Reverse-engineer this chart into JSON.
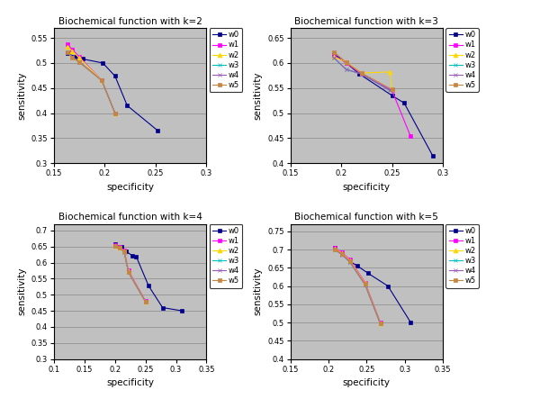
{
  "panels": [
    {
      "title": "Biochemical function with k=2",
      "xlim": [
        0.15,
        0.3
      ],
      "ylim": [
        0.3,
        0.57
      ],
      "xticks": [
        0.15,
        0.2,
        0.25,
        0.3
      ],
      "yticks": [
        0.3,
        0.35,
        0.4,
        0.45,
        0.5,
        0.55
      ],
      "series": [
        {
          "label": "w0",
          "color": "#00008B",
          "marker": "s",
          "mfc": "#00008B",
          "x": [
            0.163,
            0.17,
            0.178,
            0.198,
            0.21,
            0.222,
            0.252
          ],
          "y": [
            0.52,
            0.513,
            0.508,
            0.5,
            0.474,
            0.415,
            0.365
          ]
        },
        {
          "label": "w1",
          "color": "#FF00FF",
          "marker": "s",
          "mfc": "#FF00FF",
          "x": [
            0.163,
            0.168,
            0.175,
            0.197,
            0.21
          ],
          "y": [
            0.537,
            0.527,
            0.512,
            0.465,
            0.4
          ]
        },
        {
          "label": "w2",
          "color": "#FFD700",
          "marker": "^",
          "mfc": "#FFD700",
          "x": [
            0.163,
            0.168,
            0.175,
            0.197,
            0.21
          ],
          "y": [
            0.533,
            0.524,
            0.51,
            0.465,
            0.4
          ]
        },
        {
          "label": "w3",
          "color": "#00BFBF",
          "marker": "x",
          "mfc": "#00BFBF",
          "x": [
            0.163,
            0.168,
            0.175,
            0.197,
            0.21
          ],
          "y": [
            0.522,
            0.512,
            0.502,
            0.465,
            0.4
          ]
        },
        {
          "label": "w4",
          "color": "#9B59B6",
          "marker": "x",
          "mfc": "#9B59B6",
          "x": [
            0.163,
            0.168,
            0.175,
            0.197,
            0.21
          ],
          "y": [
            0.522,
            0.512,
            0.502,
            0.465,
            0.4
          ]
        },
        {
          "label": "w5",
          "color": "#C68642",
          "marker": "s",
          "mfc": "#C68642",
          "x": [
            0.163,
            0.168,
            0.175,
            0.197,
            0.21
          ],
          "y": [
            0.521,
            0.511,
            0.501,
            0.465,
            0.4
          ]
        }
      ]
    },
    {
      "title": "Biochemical function with k=3",
      "xlim": [
        0.15,
        0.3
      ],
      "ylim": [
        0.4,
        0.67
      ],
      "xticks": [
        0.15,
        0.2,
        0.25,
        0.3
      ],
      "yticks": [
        0.4,
        0.45,
        0.5,
        0.55,
        0.6,
        0.65
      ],
      "series": [
        {
          "label": "w0",
          "color": "#00008B",
          "marker": "s",
          "mfc": "#00008B",
          "x": [
            0.193,
            0.205,
            0.218,
            0.25,
            0.262,
            0.29
          ],
          "y": [
            0.618,
            0.6,
            0.578,
            0.535,
            0.52,
            0.415
          ]
        },
        {
          "label": "w1",
          "color": "#FF00FF",
          "marker": "s",
          "mfc": "#FF00FF",
          "x": [
            0.193,
            0.205,
            0.22,
            0.25,
            0.268
          ],
          "y": [
            0.615,
            0.6,
            0.578,
            0.545,
            0.455
          ]
        },
        {
          "label": "w2",
          "color": "#FFD700",
          "marker": "^",
          "mfc": "#FFD700",
          "x": [
            0.193,
            0.205,
            0.22,
            0.248,
            0.25
          ],
          "y": [
            0.612,
            0.602,
            0.58,
            0.582,
            0.548
          ]
        },
        {
          "label": "w3",
          "color": "#00BFBF",
          "marker": "x",
          "mfc": "#00BFBF",
          "x": [
            0.193,
            0.205,
            0.22,
            0.248
          ],
          "y": [
            0.61,
            0.587,
            0.578,
            0.545
          ]
        },
        {
          "label": "w4",
          "color": "#9B59B6",
          "marker": "x",
          "mfc": "#9B59B6",
          "x": [
            0.193,
            0.205,
            0.22,
            0.248
          ],
          "y": [
            0.61,
            0.587,
            0.578,
            0.545
          ]
        },
        {
          "label": "w5",
          "color": "#C68642",
          "marker": "s",
          "mfc": "#C68642",
          "x": [
            0.193,
            0.205,
            0.22,
            0.25
          ],
          "y": [
            0.622,
            0.601,
            0.58,
            0.547
          ]
        }
      ]
    },
    {
      "title": "Biochemical function with k=4",
      "xlim": [
        0.1,
        0.35
      ],
      "ylim": [
        0.3,
        0.72
      ],
      "xticks": [
        0.1,
        0.15,
        0.2,
        0.25,
        0.3,
        0.35
      ],
      "yticks": [
        0.3,
        0.35,
        0.4,
        0.45,
        0.5,
        0.55,
        0.6,
        0.65,
        0.7
      ],
      "series": [
        {
          "label": "w0",
          "color": "#00008B",
          "marker": "s",
          "mfc": "#00008B",
          "x": [
            0.2,
            0.21,
            0.218,
            0.228,
            0.235,
            0.255,
            0.278,
            0.31
          ],
          "y": [
            0.658,
            0.648,
            0.635,
            0.622,
            0.618,
            0.528,
            0.46,
            0.45
          ]
        },
        {
          "label": "w1",
          "color": "#FF00FF",
          "marker": "s",
          "mfc": "#FF00FF",
          "x": [
            0.2,
            0.208,
            0.215,
            0.222,
            0.25
          ],
          "y": [
            0.655,
            0.648,
            0.638,
            0.575,
            0.48
          ]
        },
        {
          "label": "w2",
          "color": "#FFD700",
          "marker": "^",
          "mfc": "#FFD700",
          "x": [
            0.2,
            0.208,
            0.215,
            0.222,
            0.25
          ],
          "y": [
            0.653,
            0.647,
            0.636,
            0.573,
            0.478
          ]
        },
        {
          "label": "w3",
          "color": "#00BFBF",
          "marker": "x",
          "mfc": "#00BFBF",
          "x": [
            0.2,
            0.208,
            0.215,
            0.222,
            0.25
          ],
          "y": [
            0.651,
            0.645,
            0.633,
            0.57,
            0.478
          ]
        },
        {
          "label": "w4",
          "color": "#9B59B6",
          "marker": "x",
          "mfc": "#9B59B6",
          "x": [
            0.2,
            0.208,
            0.215,
            0.222,
            0.25
          ],
          "y": [
            0.651,
            0.645,
            0.633,
            0.57,
            0.478
          ]
        },
        {
          "label": "w5",
          "color": "#C68642",
          "marker": "s",
          "mfc": "#C68642",
          "x": [
            0.2,
            0.208,
            0.215,
            0.222,
            0.25
          ],
          "y": [
            0.652,
            0.646,
            0.634,
            0.571,
            0.479
          ]
        }
      ]
    },
    {
      "title": "Biochemical function with k=5",
      "xlim": [
        0.15,
        0.35
      ],
      "ylim": [
        0.4,
        0.77
      ],
      "xticks": [
        0.15,
        0.2,
        0.25,
        0.3,
        0.35
      ],
      "yticks": [
        0.4,
        0.45,
        0.5,
        0.55,
        0.6,
        0.65,
        0.7,
        0.75
      ],
      "series": [
        {
          "label": "w0",
          "color": "#00008B",
          "marker": "s",
          "mfc": "#00008B",
          "x": [
            0.208,
            0.218,
            0.228,
            0.238,
            0.252,
            0.278,
            0.308
          ],
          "y": [
            0.706,
            0.688,
            0.668,
            0.655,
            0.635,
            0.6,
            0.5
          ]
        },
        {
          "label": "w1",
          "color": "#FF00FF",
          "marker": "s",
          "mfc": "#FF00FF",
          "x": [
            0.208,
            0.218,
            0.228,
            0.248,
            0.268
          ],
          "y": [
            0.704,
            0.692,
            0.672,
            0.61,
            0.5
          ]
        },
        {
          "label": "w2",
          "color": "#FFD700",
          "marker": "^",
          "mfc": "#FFD700",
          "x": [
            0.208,
            0.218,
            0.228,
            0.248,
            0.268
          ],
          "y": [
            0.703,
            0.69,
            0.67,
            0.608,
            0.498
          ]
        },
        {
          "label": "w3",
          "color": "#00BFBF",
          "marker": "x",
          "mfc": "#00BFBF",
          "x": [
            0.208,
            0.218,
            0.228,
            0.248,
            0.268
          ],
          "y": [
            0.7,
            0.686,
            0.666,
            0.604,
            0.497
          ]
        },
        {
          "label": "w4",
          "color": "#9B59B6",
          "marker": "x",
          "mfc": "#9B59B6",
          "x": [
            0.208,
            0.218,
            0.228,
            0.248,
            0.268
          ],
          "y": [
            0.7,
            0.686,
            0.666,
            0.604,
            0.497
          ]
        },
        {
          "label": "w5",
          "color": "#C68642",
          "marker": "s",
          "mfc": "#C68642",
          "x": [
            0.208,
            0.218,
            0.228,
            0.248,
            0.268
          ],
          "y": [
            0.701,
            0.688,
            0.668,
            0.606,
            0.498
          ]
        }
      ]
    }
  ],
  "bg_color": "#C0C0C0",
  "fig_color": "#FFFFFF",
  "outer_border_color": "#000000",
  "xlabel": "specificity",
  "ylabel": "sensitivity"
}
